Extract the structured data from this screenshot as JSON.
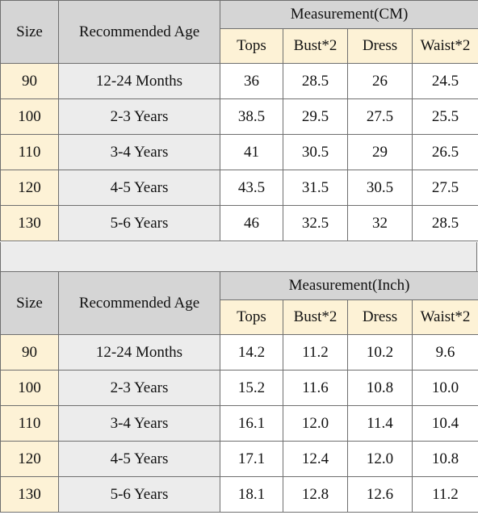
{
  "tables": [
    {
      "id": "cm",
      "header": {
        "size": "Size",
        "age": "Recommended Age",
        "measurement": "Measurement(CM)",
        "columns": [
          "Tops",
          "Bust*2",
          "Dress",
          "Waist*2"
        ]
      },
      "rows": [
        {
          "size": "90",
          "age": "12-24 Months",
          "tops": "36",
          "bust": "28.5",
          "dress": "26",
          "waist": "24.5"
        },
        {
          "size": "100",
          "age": "2-3 Years",
          "tops": "38.5",
          "bust": "29.5",
          "dress": "27.5",
          "waist": "25.5"
        },
        {
          "size": "110",
          "age": "3-4 Years",
          "tops": "41",
          "bust": "30.5",
          "dress": "29",
          "waist": "26.5"
        },
        {
          "size": "120",
          "age": "4-5 Years",
          "tops": "43.5",
          "bust": "31.5",
          "dress": "30.5",
          "waist": "27.5"
        },
        {
          "size": "130",
          "age": "5-6 Years",
          "tops": "46",
          "bust": "32.5",
          "dress": "32",
          "waist": "28.5"
        }
      ]
    },
    {
      "id": "inch",
      "header": {
        "size": "Size",
        "age": "Recommended Age",
        "measurement": "Measurement(Inch)",
        "columns": [
          "Tops",
          "Bust*2",
          "Dress",
          "Waist*2"
        ]
      },
      "rows": [
        {
          "size": "90",
          "age": "12-24 Months",
          "tops": "14.2",
          "bust": "11.2",
          "dress": "10.2",
          "waist": "9.6"
        },
        {
          "size": "100",
          "age": "2-3 Years",
          "tops": "15.2",
          "bust": "11.6",
          "dress": "10.8",
          "waist": "10.0"
        },
        {
          "size": "110",
          "age": "3-4 Years",
          "tops": "16.1",
          "bust": "12.0",
          "dress": "11.4",
          "waist": "10.4"
        },
        {
          "size": "120",
          "age": "4-5 Years",
          "tops": "17.1",
          "bust": "12.4",
          "dress": "12.0",
          "waist": "10.8"
        },
        {
          "size": "130",
          "age": "5-6 Years",
          "tops": "18.1",
          "bust": "12.8",
          "dress": "12.6",
          "waist": "11.2"
        }
      ]
    }
  ],
  "colors": {
    "header_gray": "#d5d5d5",
    "header_yellow": "#fdf2d6",
    "cell_gray": "#ececec",
    "cell_white": "#ffffff",
    "border": "#6f6f6f"
  }
}
